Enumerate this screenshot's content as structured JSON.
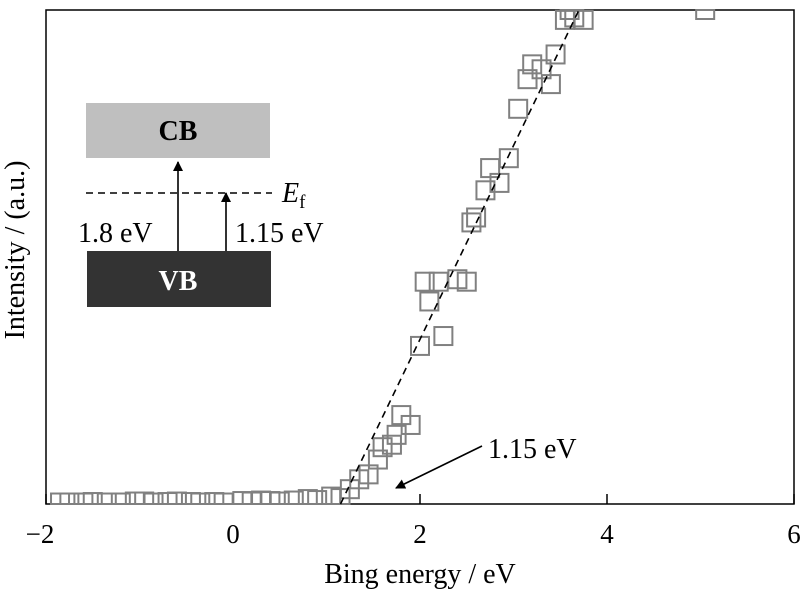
{
  "chart_data": {
    "type": "scatter",
    "title": "",
    "xlabel": "Bing energy / eV",
    "ylabel": "Intensity / (a.u.)",
    "xlim": [
      -2,
      6
    ],
    "ylim": [
      0,
      100
    ],
    "x_ticks": [
      "−2",
      "0",
      "2",
      "4",
      "6"
    ],
    "x_tick_values": [
      -2,
      0,
      2,
      4,
      6
    ],
    "y_ticks_labeled": false,
    "grid": false,
    "legend": "none",
    "marker": "open-square",
    "marker_color": "#808080",
    "series": [
      {
        "points": [
          [
            -1.85,
            0.3
          ],
          [
            -1.75,
            0.3
          ],
          [
            -1.6,
            0.3
          ],
          [
            -1.5,
            0.4
          ],
          [
            -1.35,
            0.3
          ],
          [
            -1.2,
            0.3
          ],
          [
            -1.05,
            0.5
          ],
          [
            -0.95,
            0.5
          ],
          [
            -0.85,
            0.3
          ],
          [
            -0.7,
            0.4
          ],
          [
            -0.6,
            0.5
          ],
          [
            -0.45,
            0.4
          ],
          [
            -0.35,
            0.3
          ],
          [
            -0.2,
            0.4
          ],
          [
            -0.1,
            0.3
          ],
          [
            0.1,
            0.6
          ],
          [
            0.2,
            0.5
          ],
          [
            0.3,
            0.7
          ],
          [
            0.4,
            0.6
          ],
          [
            0.5,
            0.5
          ],
          [
            0.65,
            0.7
          ],
          [
            0.8,
            1.0
          ],
          [
            0.9,
            0.8
          ],
          [
            1.05,
            1.5
          ],
          [
            1.15,
            1.2
          ],
          [
            1.25,
            3.0
          ],
          [
            1.35,
            5.0
          ],
          [
            1.45,
            6.0
          ],
          [
            1.55,
            9.0
          ],
          [
            1.6,
            11.5
          ],
          [
            1.7,
            12.0
          ],
          [
            1.75,
            14.0
          ],
          [
            1.8,
            18.0
          ],
          [
            1.9,
            16.0
          ],
          [
            2.0,
            32.0
          ],
          [
            2.05,
            45.0
          ],
          [
            2.1,
            41.0
          ],
          [
            2.2,
            45.0
          ],
          [
            2.25,
            34.0
          ],
          [
            2.4,
            45.5
          ],
          [
            2.5,
            45.0
          ],
          [
            2.55,
            57.0
          ],
          [
            2.6,
            58.0
          ],
          [
            2.7,
            63.5
          ],
          [
            2.75,
            68.0
          ],
          [
            2.85,
            65.0
          ],
          [
            2.95,
            70.0
          ],
          [
            3.05,
            80.0
          ],
          [
            3.15,
            86.0
          ],
          [
            3.2,
            89.0
          ],
          [
            3.3,
            88.0
          ],
          [
            3.4,
            85.0
          ],
          [
            3.45,
            91.0
          ],
          [
            3.55,
            98.0
          ],
          [
            3.6,
            100.0
          ],
          [
            3.65,
            98.5
          ],
          [
            3.75,
            98.0
          ],
          [
            5.05,
            100.0
          ]
        ]
      }
    ],
    "fit_line": {
      "style": "dashed",
      "from": [
        1.15,
        0
      ],
      "to": [
        3.7,
        100
      ]
    },
    "annotations": [
      {
        "text": "1.15 eV",
        "points_to": [
          1.7,
          3.0
        ]
      }
    ],
    "inset": {
      "cb_label": "CB",
      "vb_label": "VB",
      "ef_main": "E",
      "ef_sub": "f",
      "gap1_label": "1.8 eV",
      "gap2_label": "1.15 eV",
      "cb_color": "#bfbfbf",
      "vb_color": "#333333"
    }
  }
}
